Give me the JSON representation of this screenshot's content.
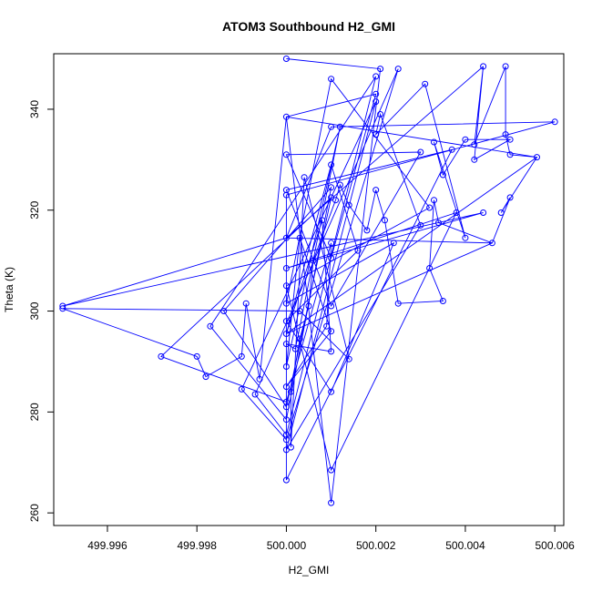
{
  "chart_data": {
    "type": "scatter",
    "title": "ATOM3 Southbound H2_GMI",
    "xlabel": "H2_GMI",
    "ylabel": "Theta (K)",
    "xlim": [
      499.9948,
      500.0062
    ],
    "ylim": [
      257.5,
      351
    ],
    "x_ticks": [
      499.996,
      499.998,
      500.0,
      500.002,
      500.004,
      500.006
    ],
    "x_tick_labels": [
      "499.996",
      "499.998",
      "500.000",
      "500.002",
      "500.004",
      "500.006"
    ],
    "y_ticks": [
      260,
      280,
      300,
      320,
      340
    ],
    "y_tick_labels": [
      "260",
      "280",
      "300",
      "320",
      "340"
    ],
    "grid": false,
    "style": "points-and-lines",
    "series_color": "#0000ff",
    "series": [
      {
        "points": [
          [
            500.0,
            350.0
          ],
          [
            500.0,
            338.5
          ],
          [
            500.0,
            331.0
          ],
          [
            500.0,
            324.0
          ],
          [
            500.0,
            323.0
          ],
          [
            500.0,
            314.5
          ],
          [
            500.0,
            308.5
          ],
          [
            500.0,
            305.0
          ],
          [
            500.0,
            301.5
          ],
          [
            500.0,
            298.0
          ],
          [
            500.0,
            295.5
          ],
          [
            500.0,
            293.5
          ],
          [
            500.0,
            289.0
          ],
          [
            500.0,
            285.0
          ],
          [
            500.0,
            282.0
          ],
          [
            500.0,
            281.0
          ],
          [
            500.0,
            278.5
          ],
          [
            500.0,
            275.5
          ],
          [
            500.0,
            274.5
          ],
          [
            500.0,
            272.5
          ],
          [
            500.0,
            266.5
          ],
          [
            500.001,
            262.0
          ],
          [
            500.001,
            268.5
          ],
          [
            500.001,
            284.0
          ],
          [
            500.001,
            292.0
          ],
          [
            500.001,
            296.0
          ],
          [
            500.001,
            301.0
          ],
          [
            500.001,
            310.5
          ],
          [
            500.001,
            313.5
          ],
          [
            500.001,
            322.5
          ],
          [
            500.001,
            324.5
          ],
          [
            500.001,
            329.0
          ],
          [
            500.001,
            336.5
          ],
          [
            500.001,
            346.0
          ],
          [
            500.0012,
            336.5
          ],
          [
            500.002,
            346.5
          ],
          [
            500.0021,
            348.0
          ],
          [
            500.0025,
            348.0
          ],
          [
            500.002,
            343.0
          ],
          [
            500.002,
            341.5
          ],
          [
            500.0021,
            339.0
          ],
          [
            500.002,
            335.0
          ],
          [
            500.003,
            331.5
          ],
          [
            500.0031,
            345.0
          ],
          [
            500.0033,
            333.5
          ],
          [
            500.0035,
            327.0
          ],
          [
            500.0037,
            332.0
          ],
          [
            500.004,
            334.0
          ],
          [
            500.0042,
            330.0
          ],
          [
            500.0044,
            348.5
          ],
          [
            500.0042,
            333.0
          ],
          [
            500.0049,
            348.5
          ],
          [
            500.0049,
            335.0
          ],
          [
            500.005,
            334.0
          ],
          [
            500.005,
            331.0
          ],
          [
            500.0056,
            330.5
          ],
          [
            500.006,
            337.5
          ],
          [
            500.0048,
            319.5
          ],
          [
            500.005,
            322.5
          ],
          [
            500.0044,
            319.5
          ],
          [
            500.0046,
            313.5
          ],
          [
            500.004,
            314.5
          ],
          [
            500.0038,
            319.5
          ],
          [
            500.0034,
            317.5
          ],
          [
            500.0033,
            322.0
          ],
          [
            500.0032,
            320.5
          ],
          [
            500.003,
            317.0
          ],
          [
            500.0032,
            308.5
          ],
          [
            500.0035,
            302.0
          ],
          [
            500.0025,
            301.5
          ],
          [
            500.0024,
            313.5
          ],
          [
            500.0022,
            318.0
          ],
          [
            500.002,
            324.0
          ],
          [
            500.0018,
            316.0
          ],
          [
            500.0016,
            312.0
          ],
          [
            500.0014,
            321.0
          ],
          [
            500.0012,
            325.0
          ],
          [
            500.0011,
            322.0
          ],
          [
            500.0008,
            318.0
          ],
          [
            500.0006,
            310.0
          ],
          [
            500.0005,
            301.0
          ],
          [
            500.0003,
            294.5
          ],
          [
            500.0002,
            292.5
          ],
          [
            500.0001,
            284.0
          ],
          [
            500.0001,
            273.0
          ],
          [
            500.0004,
            326.5
          ],
          [
            500.0003,
            314.5
          ],
          [
            500.0014,
            290.5
          ],
          [
            500.0009,
            297.0
          ],
          [
            500.0003,
            300.0
          ],
          [
            499.995,
            301.0
          ],
          [
            499.995,
            300.5
          ],
          [
            499.9972,
            291.0
          ],
          [
            499.998,
            291.0
          ],
          [
            499.9982,
            287.0
          ],
          [
            499.9986,
            300.0
          ],
          [
            499.999,
            291.0
          ],
          [
            499.9983,
            297.0
          ],
          [
            499.9991,
            301.5
          ],
          [
            499.9994,
            286.5
          ],
          [
            499.9993,
            283.5
          ],
          [
            499.999,
            284.5
          ]
        ],
        "path_order": [
          0,
          36,
          21,
          1,
          38,
          27,
          2,
          42,
          26,
          3,
          46,
          20,
          4,
          56,
          32,
          5,
          90,
          59,
          6,
          62,
          22,
          7,
          65,
          33,
          8,
          70,
          23,
          9,
          74,
          31,
          10,
          78,
          24,
          11,
          82,
          34,
          12,
          86,
          25,
          13,
          88,
          28,
          14,
          92,
          29,
          15,
          95,
          30,
          16,
          97,
          35,
          17,
          100,
          37,
          18,
          101,
          39,
          19,
          66,
          40,
          41,
          43,
          61,
          44,
          45,
          47,
          53,
          48,
          49,
          50,
          51,
          52,
          54,
          55,
          57,
          58,
          60,
          63,
          64,
          67,
          68,
          69,
          71,
          72,
          73,
          75,
          76,
          77,
          79,
          80,
          81,
          83,
          84,
          85,
          87,
          89,
          91,
          93,
          94,
          96,
          98,
          99,
          1,
          55,
          10,
          60,
          5,
          49
        ]
      }
    ]
  }
}
